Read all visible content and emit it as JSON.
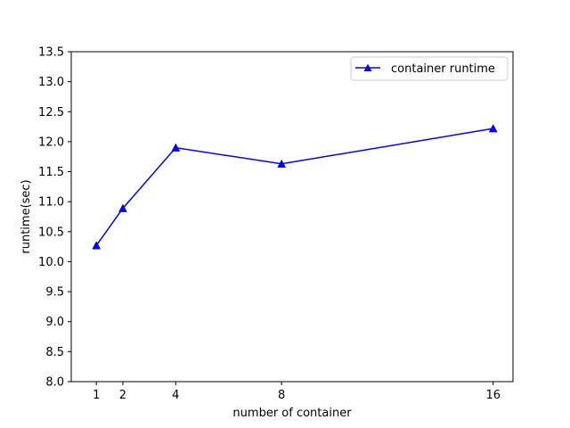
{
  "chart_data": {
    "type": "line",
    "title": "",
    "xlabel": "number of container",
    "ylabel": "runtime(sec)",
    "x": [
      1,
      2,
      4,
      8,
      16
    ],
    "xticks": [
      "1",
      "2",
      "4",
      "8",
      "16"
    ],
    "ylim": [
      8.0,
      13.5
    ],
    "yticks": [
      "8.0",
      "8.5",
      "9.0",
      "9.5",
      "10.0",
      "10.5",
      "11.0",
      "11.5",
      "12.0",
      "12.5",
      "13.0",
      "13.5"
    ],
    "grid": false,
    "legend_position": "top-right",
    "series": [
      {
        "name": "container runtime",
        "color": "#0000ff",
        "marker": "triangle-up",
        "values": [
          10.27,
          10.89,
          11.9,
          11.63,
          12.22
        ]
      }
    ]
  }
}
